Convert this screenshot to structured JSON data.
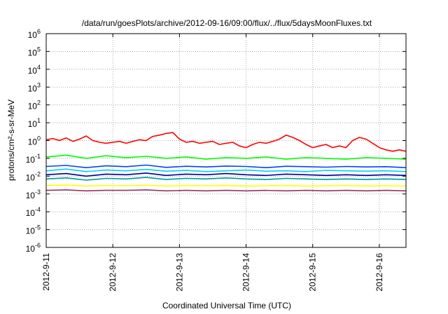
{
  "chart_data": {
    "type": "line",
    "title": "/data/run/goesPlots/archive/2012-09-16/09:00/flux/../flux/5daysMoonFluxes.txt",
    "xlabel": "Coordinated Universal Time (UTC)",
    "ylabel": "protons/cm²-s-sr-MeV",
    "yscale": "log",
    "ylim": [
      1e-06,
      1000000.0
    ],
    "xlim": [
      0,
      5.4
    ],
    "x_ticks": [
      {
        "x": 0,
        "label": "2012-9-11"
      },
      {
        "x": 1,
        "label": "2012-9-12"
      },
      {
        "x": 2,
        "label": "2012-9-13"
      },
      {
        "x": 3,
        "label": "2012-9-14"
      },
      {
        "x": 4,
        "label": "2012-9-15"
      },
      {
        "x": 5,
        "label": "2012-9-16"
      }
    ],
    "y_ticks": [
      {
        "exp": -6,
        "base": "10",
        "sup": "-6"
      },
      {
        "exp": -5,
        "base": "10",
        "sup": "-5"
      },
      {
        "exp": -4,
        "base": "10",
        "sup": "-4"
      },
      {
        "exp": -3,
        "base": "10",
        "sup": "-3"
      },
      {
        "exp": -2,
        "base": "10",
        "sup": "-2"
      },
      {
        "exp": -1,
        "base": "10",
        "sup": "-1"
      },
      {
        "exp": 0,
        "base": "10",
        "sup": "0"
      },
      {
        "exp": 1,
        "base": "10",
        "sup": "1"
      },
      {
        "exp": 2,
        "base": "10",
        "sup": "2"
      },
      {
        "exp": 3,
        "base": "10",
        "sup": "3"
      },
      {
        "exp": 4,
        "base": "10",
        "sup": "4"
      },
      {
        "exp": 5,
        "base": "10",
        "sup": "5"
      },
      {
        "exp": 6,
        "base": "10",
        "sup": "6"
      }
    ],
    "grid": true,
    "legend": "none",
    "series": [
      {
        "color": "#ff0000",
        "x": [
          0.0,
          0.1,
          0.2,
          0.3,
          0.4,
          0.5,
          0.6,
          0.7,
          0.8,
          0.9,
          1.0,
          1.1,
          1.2,
          1.3,
          1.4,
          1.5,
          1.6,
          1.7,
          1.8,
          1.9,
          2.0,
          2.1,
          2.2,
          2.3,
          2.4,
          2.5,
          2.6,
          2.7,
          2.8,
          2.9,
          3.0,
          3.1,
          3.2,
          3.3,
          3.4,
          3.5,
          3.6,
          3.7,
          3.8,
          3.9,
          4.0,
          4.1,
          4.2,
          4.3,
          4.4,
          4.5,
          4.6,
          4.7,
          4.8,
          4.9,
          5.0,
          5.1,
          5.2,
          5.3,
          5.4
        ],
        "y": [
          1.1,
          1.3,
          1.0,
          1.4,
          0.9,
          1.2,
          1.8,
          1.0,
          0.8,
          0.7,
          0.8,
          0.9,
          0.7,
          0.9,
          1.1,
          1.0,
          1.7,
          2.0,
          2.5,
          2.8,
          1.2,
          0.8,
          0.9,
          0.7,
          0.8,
          0.9,
          0.6,
          0.7,
          0.8,
          0.5,
          0.4,
          0.6,
          0.8,
          0.7,
          0.9,
          1.2,
          2.0,
          1.5,
          1.0,
          0.6,
          0.4,
          0.5,
          0.6,
          0.4,
          0.5,
          0.4,
          1.0,
          1.5,
          1.2,
          0.7,
          0.4,
          0.3,
          0.25,
          0.3,
          0.25
        ]
      },
      {
        "color": "#00ff00",
        "x": [
          0.0,
          0.3,
          0.6,
          0.9,
          1.2,
          1.5,
          1.8,
          2.1,
          2.4,
          2.7,
          3.0,
          3.3,
          3.6,
          3.9,
          4.2,
          4.5,
          4.8,
          5.1,
          5.4
        ],
        "y": [
          0.12,
          0.15,
          0.1,
          0.14,
          0.11,
          0.13,
          0.1,
          0.12,
          0.09,
          0.11,
          0.1,
          0.12,
          0.09,
          0.11,
          0.1,
          0.09,
          0.11,
          0.1,
          0.09
        ]
      },
      {
        "color": "#00d0ff",
        "x": [
          0.0,
          0.3,
          0.6,
          0.9,
          1.2,
          1.5,
          1.8,
          2.1,
          2.4,
          2.7,
          3.0,
          3.3,
          3.6,
          3.9,
          4.2,
          4.5,
          4.8,
          5.1,
          5.4
        ],
        "y": [
          0.02,
          0.025,
          0.018,
          0.022,
          0.02,
          0.024,
          0.019,
          0.021,
          0.018,
          0.02,
          0.022,
          0.019,
          0.02,
          0.018,
          0.021,
          0.02,
          0.019,
          0.02,
          0.018
        ]
      },
      {
        "color": "#0044ff",
        "x": [
          0.0,
          0.3,
          0.6,
          0.9,
          1.2,
          1.5,
          1.8,
          2.1,
          2.4,
          2.7,
          3.0,
          3.3,
          3.6,
          3.9,
          4.2,
          4.5,
          4.8,
          5.1,
          5.4
        ],
        "y": [
          0.035,
          0.04,
          0.03,
          0.038,
          0.034,
          0.042,
          0.031,
          0.036,
          0.033,
          0.037,
          0.035,
          0.03,
          0.036,
          0.034,
          0.032,
          0.035,
          0.033,
          0.034,
          0.03
        ]
      },
      {
        "color": "#000099",
        "x": [
          0.0,
          0.3,
          0.6,
          0.9,
          1.2,
          1.5,
          1.8,
          2.1,
          2.4,
          2.7,
          3.0,
          3.3,
          3.6,
          3.9,
          4.2,
          4.5,
          4.8,
          5.1,
          5.4
        ],
        "y": [
          0.012,
          0.014,
          0.01,
          0.013,
          0.012,
          0.015,
          0.011,
          0.013,
          0.012,
          0.014,
          0.012,
          0.011,
          0.013,
          0.012,
          0.011,
          0.012,
          0.011,
          0.012,
          0.011
        ]
      },
      {
        "color": "#009999",
        "x": [
          0.0,
          0.3,
          0.6,
          0.9,
          1.2,
          1.5,
          1.8,
          2.1,
          2.4,
          2.7,
          3.0,
          3.3,
          3.6,
          3.9,
          4.2,
          4.5,
          4.8,
          5.1,
          5.4
        ],
        "y": [
          0.007,
          0.008,
          0.006,
          0.0075,
          0.007,
          0.0085,
          0.0065,
          0.0075,
          0.007,
          0.008,
          0.007,
          0.0065,
          0.0075,
          0.007,
          0.0065,
          0.007,
          0.0065,
          0.007,
          0.0065
        ]
      },
      {
        "color": "#ffff00",
        "x": [
          0.0,
          0.3,
          0.6,
          0.9,
          1.2,
          1.5,
          1.8,
          2.1,
          2.4,
          2.7,
          3.0,
          3.3,
          3.6,
          3.9,
          4.2,
          4.5,
          4.8,
          5.1,
          5.4
        ],
        "y": [
          0.003,
          0.0032,
          0.0028,
          0.003,
          0.0029,
          0.0031,
          0.0028,
          0.003,
          0.0029,
          0.003,
          0.0028,
          0.0029,
          0.003,
          0.0028,
          0.0029,
          0.003,
          0.0028,
          0.0029,
          0.0028
        ]
      },
      {
        "color": "#993366",
        "x": [
          0.0,
          0.3,
          0.6,
          0.9,
          1.2,
          1.5,
          1.8,
          2.1,
          2.4,
          2.7,
          3.0,
          3.3,
          3.6,
          3.9,
          4.2,
          4.5,
          4.8,
          5.1,
          5.4
        ],
        "y": [
          0.0016,
          0.0017,
          0.0015,
          0.0016,
          0.0016,
          0.0017,
          0.0015,
          0.0016,
          0.0015,
          0.0016,
          0.0015,
          0.0016,
          0.0015,
          0.0016,
          0.0015,
          0.0016,
          0.0015,
          0.0016,
          0.0015
        ]
      }
    ]
  }
}
